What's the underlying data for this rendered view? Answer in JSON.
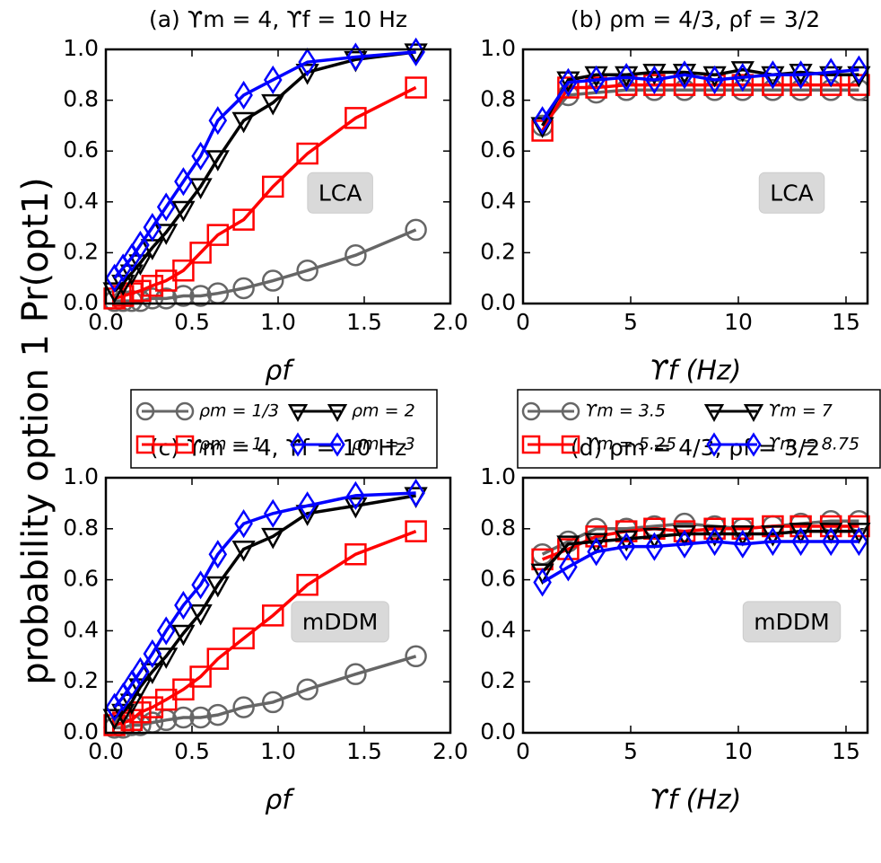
{
  "figure_ylabel": "probability option 1 Pr(opt1)",
  "chart_data": [
    {
      "type": "line",
      "title": "(a) ϒm = 4, ϒf = 10 Hz",
      "xlabel": "ρf",
      "annotation": "LCA",
      "xlim": [
        0,
        2
      ],
      "ylim": [
        0,
        1
      ],
      "xticks": [
        {
          "value": 0,
          "label": "0.0"
        },
        {
          "value": 0.5,
          "label": "0.5"
        },
        {
          "value": 1,
          "label": "1.0"
        },
        {
          "value": 1.5,
          "label": "1.5"
        },
        {
          "value": 2,
          "label": "2.0"
        }
      ],
      "yticks": [
        {
          "value": 0,
          "label": "0.0"
        },
        {
          "value": 0.2,
          "label": "0.2"
        },
        {
          "value": 0.4,
          "label": "0.4"
        },
        {
          "value": 0.6,
          "label": "0.6"
        },
        {
          "value": 0.8,
          "label": "0.8"
        },
        {
          "value": 1,
          "label": "1.0"
        }
      ],
      "x": [
        0.05,
        0.1,
        0.15,
        0.2,
        0.27,
        0.35,
        0.45,
        0.55,
        0.65,
        0.8,
        0.97,
        1.17,
        1.45,
        1.8
      ],
      "series": [
        {
          "name": "ρm = 1/3",
          "color": "#666666",
          "marker": "circle",
          "values": [
            0.01,
            0.01,
            0.01,
            0.01,
            0.02,
            0.02,
            0.03,
            0.03,
            0.04,
            0.06,
            0.09,
            0.13,
            0.19,
            0.29
          ]
        },
        {
          "name": "ρm = 1",
          "color": "#ff0000",
          "marker": "square",
          "values": [
            0.02,
            0.03,
            0.04,
            0.05,
            0.07,
            0.09,
            0.13,
            0.2,
            0.27,
            0.33,
            0.46,
            0.59,
            0.73,
            0.85
          ]
        },
        {
          "name": "ρm = 2",
          "color": "#000000",
          "marker": "triangle-down",
          "values": [
            0.05,
            0.08,
            0.12,
            0.16,
            0.22,
            0.28,
            0.37,
            0.46,
            0.57,
            0.72,
            0.79,
            0.91,
            0.96,
            0.99
          ]
        },
        {
          "name": "ρm = 3",
          "color": "#0000ff",
          "marker": "diamond",
          "values": [
            0.1,
            0.14,
            0.18,
            0.23,
            0.3,
            0.38,
            0.48,
            0.58,
            0.72,
            0.82,
            0.88,
            0.95,
            0.97,
            0.99
          ]
        }
      ]
    },
    {
      "type": "line",
      "title": "(b) ρm = 4/3, ρf = 3/2",
      "xlabel": "ϒf (Hz)",
      "annotation": "LCA",
      "xlim": [
        0,
        16
      ],
      "ylim": [
        0,
        1
      ],
      "xticks": [
        0,
        5,
        10,
        15
      ],
      "yticks": [
        {
          "value": 0,
          "label": "0.0"
        },
        {
          "value": 0.2,
          "label": "0.2"
        },
        {
          "value": 0.4,
          "label": "0.4"
        },
        {
          "value": 0.6,
          "label": "0.6"
        },
        {
          "value": 0.8,
          "label": "0.8"
        },
        {
          "value": 1,
          "label": "1.0"
        }
      ],
      "x": [
        0.9,
        2.1,
        3.4,
        4.8,
        6.1,
        7.5,
        8.9,
        10.2,
        11.6,
        12.9,
        14.3,
        15.6
      ],
      "series": [
        {
          "name": "ϒm = 3.5",
          "color": "#666666",
          "marker": "circle",
          "values": [
            0.7,
            0.82,
            0.83,
            0.84,
            0.84,
            0.84,
            0.84,
            0.84,
            0.84,
            0.84,
            0.84,
            0.84
          ]
        },
        {
          "name": "ϒm = 5.25",
          "color": "#ff0000",
          "marker": "square",
          "values": [
            0.68,
            0.85,
            0.85,
            0.86,
            0.86,
            0.86,
            0.86,
            0.86,
            0.86,
            0.86,
            0.86,
            0.86
          ]
        },
        {
          "name": "ϒm = 7",
          "color": "#000000",
          "marker": "triangle-down",
          "values": [
            0.7,
            0.88,
            0.9,
            0.9,
            0.91,
            0.91,
            0.9,
            0.92,
            0.9,
            0.91,
            0.9,
            0.9
          ]
        },
        {
          "name": "ϒm = 8.75",
          "color": "#0000ff",
          "marker": "diamond",
          "values": [
            0.72,
            0.87,
            0.88,
            0.89,
            0.88,
            0.9,
            0.88,
            0.89,
            0.9,
            0.9,
            0.91,
            0.92
          ]
        }
      ]
    },
    {
      "type": "line",
      "title": "(c) ϒm = 4, ϒf = 10 Hz",
      "xlabel": "ρf",
      "annotation": "mDDM",
      "xlim": [
        0,
        2
      ],
      "ylim": [
        0,
        1
      ],
      "xticks": [
        {
          "value": 0,
          "label": "0.0"
        },
        {
          "value": 0.5,
          "label": "0.5"
        },
        {
          "value": 1,
          "label": "1.0"
        },
        {
          "value": 1.5,
          "label": "1.5"
        },
        {
          "value": 2,
          "label": "2.0"
        }
      ],
      "yticks": [
        {
          "value": 0,
          "label": "0.0"
        },
        {
          "value": 0.2,
          "label": "0.2"
        },
        {
          "value": 0.4,
          "label": "0.4"
        },
        {
          "value": 0.6,
          "label": "0.6"
        },
        {
          "value": 0.8,
          "label": "0.8"
        },
        {
          "value": 1,
          "label": "1.0"
        }
      ],
      "x": [
        0.05,
        0.1,
        0.15,
        0.2,
        0.27,
        0.35,
        0.45,
        0.55,
        0.65,
        0.8,
        0.97,
        1.17,
        1.45,
        1.8
      ],
      "series": [
        {
          "color": "#666666",
          "marker": "circle",
          "values": [
            0.02,
            0.02,
            0.03,
            0.03,
            0.04,
            0.05,
            0.06,
            0.06,
            0.07,
            0.1,
            0.12,
            0.17,
            0.23,
            0.3
          ]
        },
        {
          "color": "#ff0000",
          "marker": "square",
          "values": [
            0.03,
            0.04,
            0.05,
            0.08,
            0.1,
            0.13,
            0.17,
            0.22,
            0.29,
            0.37,
            0.46,
            0.58,
            0.7,
            0.79
          ]
        },
        {
          "color": "#000000",
          "marker": "triangle-down",
          "values": [
            0.06,
            0.08,
            0.12,
            0.18,
            0.24,
            0.3,
            0.39,
            0.47,
            0.58,
            0.72,
            0.77,
            0.86,
            0.89,
            0.93
          ]
        },
        {
          "color": "#0000ff",
          "marker": "diamond",
          "values": [
            0.1,
            0.14,
            0.19,
            0.24,
            0.31,
            0.4,
            0.5,
            0.58,
            0.7,
            0.82,
            0.86,
            0.89,
            0.93,
            0.94
          ]
        }
      ]
    },
    {
      "type": "line",
      "title": "(d) ρm = 4/3, ρf = 3/2",
      "xlabel": "ϒf (Hz)",
      "annotation": "mDDM",
      "xlim": [
        0,
        16
      ],
      "ylim": [
        0,
        1
      ],
      "xticks": [
        0,
        5,
        10,
        15
      ],
      "yticks": [
        {
          "value": 0,
          "label": "0.0"
        },
        {
          "value": 0.2,
          "label": "0.2"
        },
        {
          "value": 0.4,
          "label": "0.4"
        },
        {
          "value": 0.6,
          "label": "0.6"
        },
        {
          "value": 0.8,
          "label": "0.8"
        },
        {
          "value": 1,
          "label": "1.0"
        }
      ],
      "x": [
        0.9,
        2.1,
        3.4,
        4.8,
        6.1,
        7.5,
        8.9,
        10.2,
        11.6,
        12.9,
        14.3,
        15.6
      ],
      "series": [
        {
          "color": "#666666",
          "marker": "circle",
          "values": [
            0.7,
            0.75,
            0.8,
            0.8,
            0.81,
            0.82,
            0.81,
            0.8,
            0.81,
            0.82,
            0.83,
            0.83
          ]
        },
        {
          "color": "#ff0000",
          "marker": "square",
          "values": [
            0.68,
            0.72,
            0.77,
            0.79,
            0.8,
            0.79,
            0.8,
            0.8,
            0.81,
            0.81,
            0.81,
            0.81
          ]
        },
        {
          "color": "#000000",
          "marker": "triangle-down",
          "values": [
            0.63,
            0.74,
            0.75,
            0.76,
            0.77,
            0.78,
            0.78,
            0.78,
            0.78,
            0.79,
            0.79,
            0.79
          ]
        },
        {
          "color": "#0000ff",
          "marker": "diamond",
          "values": [
            0.59,
            0.65,
            0.71,
            0.73,
            0.73,
            0.74,
            0.75,
            0.74,
            0.75,
            0.75,
            0.75,
            0.75
          ]
        }
      ]
    }
  ]
}
